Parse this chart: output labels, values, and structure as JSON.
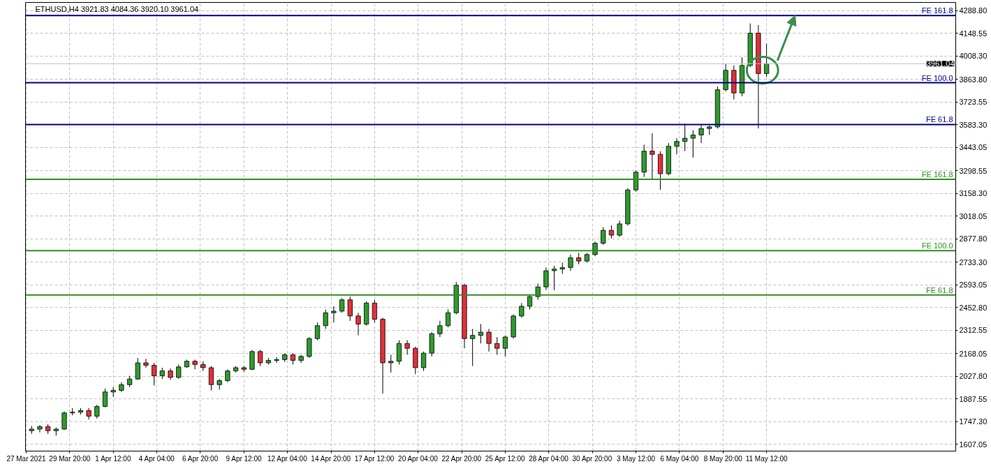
{
  "chart_data": {
    "type": "candlestick",
    "title": "ETHUSD,H4  3921.83 4084.36 3920.10 3961.04",
    "x": [
      "2021-03-27T12:00",
      "2021-03-28T00:00",
      "2021-03-28T12:00",
      "2021-03-29T00:00",
      "2021-03-29T12:00",
      "2021-03-30T00:00",
      "2021-03-30T12:00",
      "2021-03-31T00:00",
      "2021-03-31T12:00",
      "2021-04-01T00:00",
      "2021-04-01T12:00",
      "2021-04-02T00:00",
      "2021-04-02T12:00",
      "2021-04-03T00:00",
      "2021-04-03T12:00",
      "2021-04-04T00:00",
      "2021-04-04T12:00",
      "2021-04-05T00:00",
      "2021-04-05T12:00",
      "2021-04-06T00:00",
      "2021-04-06T12:00",
      "2021-04-07T00:00",
      "2021-04-07T12:00",
      "2021-04-08T00:00",
      "2021-04-08T12:00",
      "2021-04-09T00:00",
      "2021-04-09T12:00",
      "2021-04-10T00:00",
      "2021-04-10T12:00",
      "2021-04-11T00:00",
      "2021-04-11T12:00",
      "2021-04-12T00:00",
      "2021-04-12T12:00",
      "2021-04-13T00:00",
      "2021-04-13T12:00",
      "2021-04-14T00:00",
      "2021-04-14T12:00",
      "2021-04-15T00:00",
      "2021-04-15T12:00",
      "2021-04-16T00:00",
      "2021-04-16T12:00",
      "2021-04-17T00:00",
      "2021-04-17T12:00",
      "2021-04-18T00:00",
      "2021-04-18T12:00",
      "2021-04-19T00:00",
      "2021-04-19T12:00",
      "2021-04-20T00:00",
      "2021-04-20T12:00",
      "2021-04-21T00:00",
      "2021-04-21T12:00",
      "2021-04-22T00:00",
      "2021-04-22T12:00",
      "2021-04-23T00:00",
      "2021-04-23T12:00",
      "2021-04-24T00:00",
      "2021-04-24T12:00",
      "2021-04-25T00:00",
      "2021-04-25T12:00",
      "2021-04-26T00:00",
      "2021-04-26T12:00",
      "2021-04-27T00:00",
      "2021-04-27T12:00",
      "2021-04-28T00:00",
      "2021-04-28T12:00",
      "2021-04-29T00:00",
      "2021-04-29T12:00",
      "2021-04-30T00:00",
      "2021-04-30T12:00",
      "2021-05-01T00:00",
      "2021-05-01T12:00",
      "2021-05-02T00:00",
      "2021-05-02T12:00",
      "2021-05-03T00:00",
      "2021-05-03T12:00",
      "2021-05-04T00:00",
      "2021-05-04T12:00",
      "2021-05-05T00:00",
      "2021-05-05T12:00",
      "2021-05-06T00:00",
      "2021-05-06T12:00",
      "2021-05-07T00:00",
      "2021-05-07T12:00",
      "2021-05-08T00:00",
      "2021-05-08T12:00",
      "2021-05-09T00:00",
      "2021-05-09T12:00",
      "2021-05-10T00:00",
      "2021-05-10T12:00",
      "2021-05-11T00:00",
      "2021-05-11T12:00"
    ],
    "ohlc": [
      [
        1690,
        1720,
        1670,
        1700
      ],
      [
        1700,
        1725,
        1680,
        1715
      ],
      [
        1715,
        1730,
        1670,
        1690
      ],
      [
        1690,
        1710,
        1660,
        1700
      ],
      [
        1700,
        1810,
        1695,
        1800
      ],
      [
        1800,
        1830,
        1785,
        1805
      ],
      [
        1805,
        1830,
        1790,
        1815
      ],
      [
        1815,
        1830,
        1760,
        1780
      ],
      [
        1780,
        1850,
        1765,
        1840
      ],
      [
        1840,
        1950,
        1835,
        1930
      ],
      [
        1930,
        1960,
        1900,
        1940
      ],
      [
        1940,
        1990,
        1930,
        1975
      ],
      [
        1975,
        2030,
        1960,
        2010
      ],
      [
        2010,
        2140,
        2005,
        2110
      ],
      [
        2110,
        2135,
        2080,
        2095
      ],
      [
        2095,
        2110,
        1970,
        2030
      ],
      [
        2030,
        2080,
        2010,
        2060
      ],
      [
        2060,
        2075,
        2005,
        2020
      ],
      [
        2020,
        2100,
        2010,
        2085
      ],
      [
        2085,
        2130,
        2080,
        2120
      ],
      [
        2120,
        2130,
        2070,
        2100
      ],
      [
        2100,
        2120,
        2060,
        2080
      ],
      [
        2080,
        2090,
        1940,
        1975
      ],
      [
        1975,
        2010,
        1945,
        2000
      ],
      [
        2000,
        2070,
        1990,
        2060
      ],
      [
        2060,
        2090,
        2050,
        2080
      ],
      [
        2080,
        2090,
        2055,
        2070
      ],
      [
        2070,
        2190,
        2065,
        2180
      ],
      [
        2180,
        2190,
        2090,
        2110
      ],
      [
        2110,
        2140,
        2100,
        2125
      ],
      [
        2125,
        2145,
        2110,
        2130
      ],
      [
        2130,
        2170,
        2115,
        2160
      ],
      [
        2160,
        2170,
        2100,
        2125
      ],
      [
        2125,
        2160,
        2110,
        2150
      ],
      [
        2150,
        2270,
        2140,
        2260
      ],
      [
        2260,
        2360,
        2250,
        2340
      ],
      [
        2340,
        2440,
        2320,
        2420
      ],
      [
        2420,
        2460,
        2360,
        2430
      ],
      [
        2430,
        2510,
        2420,
        2500
      ],
      [
        2500,
        2520,
        2370,
        2400
      ],
      [
        2400,
        2420,
        2280,
        2350
      ],
      [
        2350,
        2490,
        2340,
        2480
      ],
      [
        2480,
        2500,
        2360,
        2380
      ],
      [
        2380,
        2390,
        1920,
        2110
      ],
      [
        2110,
        2160,
        2050,
        2120
      ],
      [
        2120,
        2250,
        2100,
        2230
      ],
      [
        2230,
        2250,
        2160,
        2200
      ],
      [
        2200,
        2210,
        2040,
        2080
      ],
      [
        2080,
        2180,
        2060,
        2170
      ],
      [
        2170,
        2300,
        2150,
        2290
      ],
      [
        2290,
        2370,
        2270,
        2340
      ],
      [
        2340,
        2440,
        2330,
        2420
      ],
      [
        2420,
        2610,
        2410,
        2590
      ],
      [
        2590,
        2600,
        2200,
        2260
      ],
      [
        2260,
        2320,
        2090,
        2280
      ],
      [
        2280,
        2350,
        2230,
        2300
      ],
      [
        2300,
        2320,
        2180,
        2230
      ],
      [
        2230,
        2270,
        2160,
        2200
      ],
      [
        2200,
        2280,
        2150,
        2270
      ],
      [
        2270,
        2410,
        2260,
        2400
      ],
      [
        2400,
        2480,
        2390,
        2460
      ],
      [
        2460,
        2530,
        2440,
        2520
      ],
      [
        2520,
        2600,
        2500,
        2580
      ],
      [
        2580,
        2700,
        2560,
        2680
      ],
      [
        2680,
        2710,
        2560,
        2690
      ],
      [
        2690,
        2730,
        2660,
        2700
      ],
      [
        2700,
        2780,
        2680,
        2760
      ],
      [
        2760,
        2790,
        2720,
        2740
      ],
      [
        2740,
        2790,
        2730,
        2780
      ],
      [
        2780,
        2860,
        2770,
        2850
      ],
      [
        2850,
        2950,
        2840,
        2930
      ],
      [
        2930,
        2960,
        2880,
        2900
      ],
      [
        2900,
        2990,
        2890,
        2970
      ],
      [
        2970,
        3190,
        2960,
        3180
      ],
      [
        3180,
        3300,
        3170,
        3290
      ],
      [
        3290,
        3460,
        3260,
        3420
      ],
      [
        3420,
        3530,
        3250,
        3400
      ],
      [
        3400,
        3420,
        3180,
        3280
      ],
      [
        3280,
        3470,
        3270,
        3450
      ],
      [
        3450,
        3500,
        3400,
        3480
      ],
      [
        3480,
        3590,
        3420,
        3500
      ],
      [
        3500,
        3550,
        3380,
        3520
      ],
      [
        3520,
        3580,
        3470,
        3560
      ],
      [
        3560,
        3580,
        3520,
        3570
      ],
      [
        3570,
        3820,
        3560,
        3800
      ],
      [
        3800,
        3960,
        3790,
        3920
      ],
      [
        3920,
        3950,
        3740,
        3780
      ],
      [
        3780,
        4000,
        3760,
        3950
      ],
      [
        3950,
        4210,
        3940,
        4150
      ],
      [
        4150,
        4200,
        3560,
        3900
      ],
      [
        3900,
        4084,
        3880,
        3961
      ]
    ],
    "colors": [
      "#2e9b2e",
      "#2e9b2e",
      "#e0303a",
      "#2e9b2e",
      "#2e9b2e",
      "#2e9b2e",
      "#2e9b2e",
      "#e0303a",
      "#2e9b2e",
      "#2e9b2e",
      "#2e9b2e",
      "#2e9b2e",
      "#2e9b2e",
      "#2e9b2e",
      "#e0303a",
      "#e0303a",
      "#2e9b2e",
      "#e0303a",
      "#2e9b2e",
      "#2e9b2e",
      "#e0303a",
      "#e0303a",
      "#e0303a",
      "#2e9b2e",
      "#2e9b2e",
      "#2e9b2e",
      "#e0303a",
      "#2e9b2e",
      "#e0303a",
      "#2e9b2e",
      "#2e9b2e",
      "#2e9b2e",
      "#e0303a",
      "#2e9b2e",
      "#2e9b2e",
      "#2e9b2e",
      "#2e9b2e",
      "#2e9b2e",
      "#2e9b2e",
      "#e0303a",
      "#e0303a",
      "#2e9b2e",
      "#e0303a",
      "#e0303a",
      "#2e9b2e",
      "#2e9b2e",
      "#e0303a",
      "#e0303a",
      "#2e9b2e",
      "#2e9b2e",
      "#2e9b2e",
      "#2e9b2e",
      "#2e9b2e",
      "#e0303a",
      "#2e9b2e",
      "#2e9b2e",
      "#e0303a",
      "#e0303a",
      "#2e9b2e",
      "#2e9b2e",
      "#2e9b2e",
      "#2e9b2e",
      "#2e9b2e",
      "#2e9b2e",
      "#2e9b2e",
      "#2e9b2e",
      "#2e9b2e",
      "#e0303a",
      "#2e9b2e",
      "#2e9b2e",
      "#2e9b2e",
      "#e0303a",
      "#2e9b2e",
      "#2e9b2e",
      "#2e9b2e",
      "#2e9b2e",
      "#e0303a",
      "#e0303a",
      "#2e9b2e",
      "#2e9b2e",
      "#2e9b2e",
      "#2e9b2e",
      "#2e9b2e",
      "#2e9b2e",
      "#2e9b2e",
      "#2e9b2e",
      "#e0303a",
      "#2e9b2e",
      "#2e9b2e",
      "#e0303a",
      "#2e9b2e"
    ],
    "xlim": [
      "2021-03-27T03:00",
      "2021-05-23T02:00"
    ],
    "xticks": [
      {
        "value": "2021-03-27T04:00",
        "label": "27 Mar 2021"
      },
      {
        "value": "2021-03-29T20:00",
        "label": "29 Mar 20:00"
      },
      {
        "value": "2021-04-01T12:00",
        "label": "1 Apr 12:00"
      },
      {
        "value": "2021-04-04T04:00",
        "label": "4 Apr 04:00"
      },
      {
        "value": "2021-04-06T20:00",
        "label": "6 Apr 20:00"
      },
      {
        "value": "2021-04-09T12:00",
        "label": "9 Apr 12:00"
      },
      {
        "value": "2021-04-12T04:00",
        "label": "12 Apr 04:00"
      },
      {
        "value": "2021-04-14T20:00",
        "label": "14 Apr 20:00"
      },
      {
        "value": "2021-04-17T12:00",
        "label": "17 Apr 12:00"
      },
      {
        "value": "2021-04-20T04:00",
        "label": "20 Apr 04:00"
      },
      {
        "value": "2021-04-22T20:00",
        "label": "22 Apr 20:00"
      },
      {
        "value": "2021-04-25T12:00",
        "label": "25 Apr 12:00"
      },
      {
        "value": "2021-04-28T04:00",
        "label": "28 Apr 04:00"
      },
      {
        "value": "2021-04-30T20:00",
        "label": "30 Apr 20:00"
      },
      {
        "value": "2021-05-03T12:00",
        "label": "3 May 12:00"
      },
      {
        "value": "2021-05-06T04:00",
        "label": "6 May 04:00"
      },
      {
        "value": "2021-05-08T20:00",
        "label": "8 May 20:00"
      },
      {
        "value": "2021-05-11T12:00",
        "label": "11 May 12:00"
      }
    ],
    "ylim": [
      1564,
      4340
    ],
    "yticks": [
      {
        "value": 1607.05,
        "label": "1607.05"
      },
      {
        "value": 1747.3,
        "label": "1747.30"
      },
      {
        "value": 1887.55,
        "label": "1887.55"
      },
      {
        "value": 2027.8,
        "label": "2027.80"
      },
      {
        "value": 2168.05,
        "label": "2168.05"
      },
      {
        "value": 2312.55,
        "label": "2312.55"
      },
      {
        "value": 2452.8,
        "label": "2452.80"
      },
      {
        "value": 2593.05,
        "label": "2593.05"
      },
      {
        "value": 2733.3,
        "label": "2733.30"
      },
      {
        "value": 2877.8,
        "label": "2877.80"
      },
      {
        "value": 3018.05,
        "label": "3018.05"
      },
      {
        "value": 3158.3,
        "label": "3158.30"
      },
      {
        "value": 3298.55,
        "label": "3298.55"
      },
      {
        "value": 3443.05,
        "label": "3443.05"
      },
      {
        "value": 3583.3,
        "label": "3583.30"
      },
      {
        "value": 3723.55,
        "label": "3723.55"
      },
      {
        "value": 3863.8,
        "label": "3863.80"
      },
      {
        "value": 4008.3,
        "label": "4008.30"
      },
      {
        "value": 4148.55,
        "label": "4148.55"
      },
      {
        "value": 4288.8,
        "label": "4288.80"
      }
    ],
    "ref_lines": [
      {
        "axis": "y",
        "value": 4259,
        "label": "FE 161.8",
        "color": "#000080"
      },
      {
        "axis": "y",
        "value": 3843,
        "label": "FE 100.0",
        "color": "#000080"
      },
      {
        "axis": "y",
        "value": 3585,
        "label": "FE 61.8",
        "color": "#000080"
      },
      {
        "axis": "y",
        "value": 3246,
        "label": "FE 161.8",
        "color": "#2f8f1f"
      },
      {
        "axis": "y",
        "value": 2804,
        "label": "FE 100.0",
        "color": "#2f8f1f"
      },
      {
        "axis": "y",
        "value": 2530,
        "label": "FE 61.8",
        "color": "#2f8f1f"
      },
      {
        "axis": "y",
        "value": 3961.04,
        "label": "3961.04"
      }
    ],
    "grid": true
  }
}
